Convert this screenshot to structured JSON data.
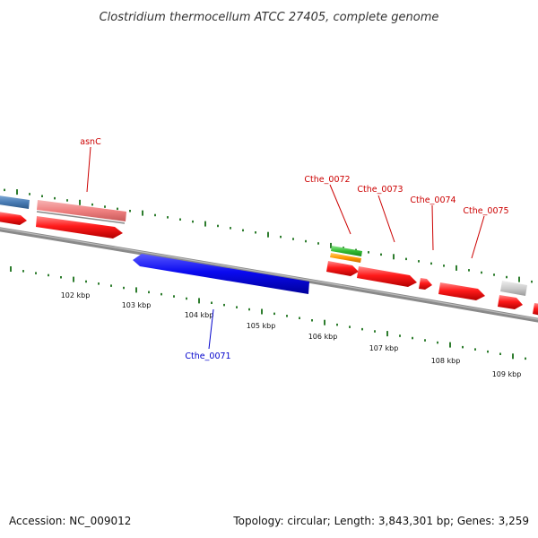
{
  "title": "Clostridium thermocellum ATCC 27405, complete genome",
  "footer": {
    "accession": "Accession: NC_009012",
    "summary": "Topology: circular; Length: 3,843,301 bp; Genes: 3,259"
  },
  "colors": {
    "backbone": "#8a8a8a",
    "tick": "#2e7d2e",
    "forward_gene": "#ff0000",
    "reverse_gene": "#0000ee",
    "rna_gene": "#f08080",
    "label_forward": "#cc0000",
    "label_reverse": "#0000cc"
  },
  "axis_labels": [
    "102 kbp",
    "103 kbp",
    "104 kbp",
    "105 kbp",
    "106 kbp",
    "107 kbp",
    "108 kbp",
    "109 kbp"
  ],
  "gene_labels": [
    {
      "text": "asnC",
      "strand": "forward"
    },
    {
      "text": "Cthe_0072",
      "strand": "forward"
    },
    {
      "text": "Cthe_0073",
      "strand": "forward"
    },
    {
      "text": "Cthe_0074",
      "strand": "forward"
    },
    {
      "text": "Cthe_0075",
      "strand": "forward"
    },
    {
      "text": "Cthe_0071",
      "strand": "reverse"
    }
  ]
}
